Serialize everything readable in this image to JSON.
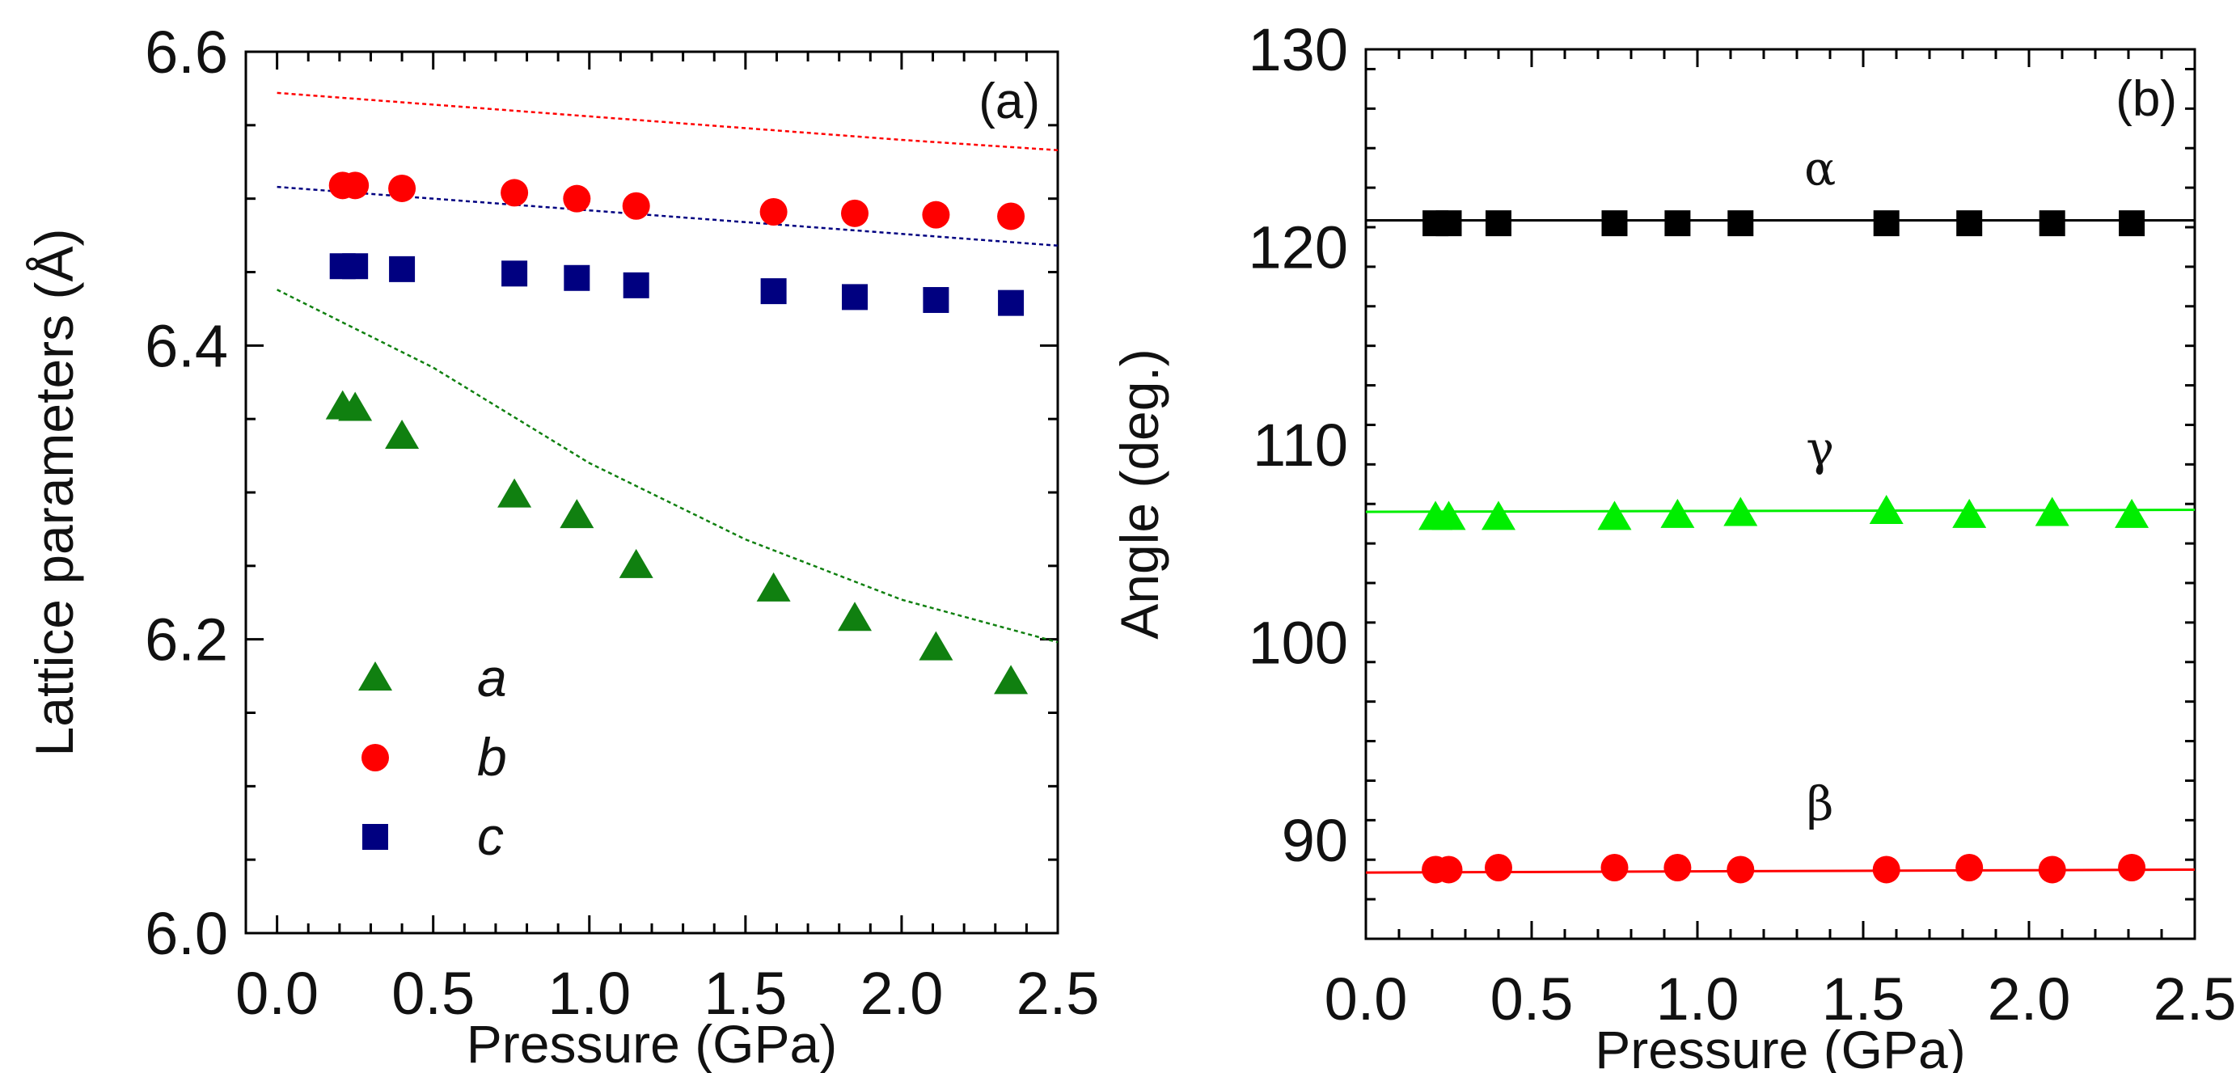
{
  "chart_data": [
    {
      "type": "scatter",
      "panel_label": "(a)",
      "xlabel": "Pressure (GPa)",
      "ylabel": "Lattice parameters (Å)",
      "xlim": [
        -0.1,
        2.5
      ],
      "ylim": [
        6.0,
        6.6
      ],
      "xticks": [
        "0.0",
        "0.5",
        "1.0",
        "1.5",
        "2.0",
        "2.5"
      ],
      "yticks": [
        "6.0",
        "6.2",
        "6.4",
        "6.6"
      ],
      "grid": false,
      "legend_position": "bottom-left",
      "series": [
        {
          "name": "a",
          "marker": "triangle",
          "color": "#108010",
          "x": [
            0.21,
            0.25,
            0.4,
            0.76,
            0.96,
            1.15,
            1.59,
            1.85,
            2.11,
            2.35
          ],
          "y": [
            6.358,
            6.357,
            6.338,
            6.298,
            6.284,
            6.25,
            6.234,
            6.214,
            6.194,
            6.171
          ]
        },
        {
          "name": "b",
          "marker": "circle",
          "color": "#ff0000",
          "x": [
            0.21,
            0.25,
            0.4,
            0.76,
            0.96,
            1.15,
            1.59,
            1.85,
            2.11,
            2.35
          ],
          "y": [
            6.509,
            6.509,
            6.507,
            6.504,
            6.5,
            6.495,
            6.491,
            6.49,
            6.489,
            6.488
          ]
        },
        {
          "name": "c",
          "marker": "square",
          "color": "#000080",
          "x": [
            0.21,
            0.25,
            0.4,
            0.76,
            0.96,
            1.15,
            1.59,
            1.85,
            2.11,
            2.35
          ],
          "y": [
            6.454,
            6.454,
            6.452,
            6.449,
            6.446,
            6.441,
            6.437,
            6.433,
            6.431,
            6.429
          ]
        }
      ],
      "fit_lines": [
        {
          "name": "b-fit",
          "color": "#ff0000",
          "style": "dotted",
          "x": [
            0,
            0.5,
            1.0,
            1.5,
            2.0,
            2.5
          ],
          "y": [
            6.572,
            6.564,
            6.556,
            6.548,
            6.54,
            6.533
          ]
        },
        {
          "name": "c-fit",
          "color": "#000080",
          "style": "dotted",
          "x": [
            0,
            0.5,
            1.0,
            1.5,
            2.0,
            2.5
          ],
          "y": [
            6.508,
            6.5,
            6.492,
            6.484,
            6.476,
            6.468
          ]
        },
        {
          "name": "a-fit",
          "color": "#108010",
          "style": "dotted",
          "x": [
            0,
            0.5,
            1.0,
            1.5,
            2.0,
            2.5
          ],
          "y": [
            6.438,
            6.385,
            6.32,
            6.268,
            6.227,
            6.198
          ]
        }
      ]
    },
    {
      "type": "scatter",
      "panel_label": "(b)",
      "xlabel": "Pressure (GPa)",
      "ylabel": "Angle (deg.)",
      "xlim": [
        0,
        2.5
      ],
      "ylim": [
        85,
        130
      ],
      "xticks": [
        "0.0",
        "0.5",
        "1.0",
        "1.5",
        "2.0",
        "2.5"
      ],
      "yticks": [
        "90",
        "100",
        "110",
        "120",
        "130"
      ],
      "grid": false,
      "series": [
        {
          "name": "α",
          "marker": "square",
          "color": "#000000",
          "x": [
            0.21,
            0.25,
            0.4,
            0.75,
            0.94,
            1.13,
            1.57,
            1.82,
            2.07,
            2.31
          ],
          "y": [
            121.2,
            121.2,
            121.2,
            121.2,
            121.2,
            121.2,
            121.2,
            121.2,
            121.2,
            121.2
          ]
        },
        {
          "name": "γ",
          "marker": "triangle",
          "color": "#00ee00",
          "x": [
            0.21,
            0.25,
            0.4,
            0.75,
            0.94,
            1.13,
            1.57,
            1.82,
            2.07,
            2.31
          ],
          "y": [
            106.3,
            106.3,
            106.3,
            106.3,
            106.4,
            106.5,
            106.6,
            106.4,
            106.5,
            106.4
          ]
        },
        {
          "name": "β",
          "marker": "circle",
          "color": "#ff0000",
          "x": [
            0.21,
            0.25,
            0.4,
            0.75,
            0.94,
            1.13,
            1.57,
            1.82,
            2.07,
            2.31
          ],
          "y": [
            88.5,
            88.5,
            88.6,
            88.6,
            88.6,
            88.5,
            88.5,
            88.6,
            88.5,
            88.6
          ]
        }
      ],
      "fit_lines": [
        {
          "name": "α-fit",
          "color": "#000000",
          "style": "solid",
          "x": [
            0,
            2.5
          ],
          "y": [
            121.35,
            121.35
          ]
        },
        {
          "name": "γ-fit",
          "color": "#00ee00",
          "style": "solid",
          "x": [
            0,
            2.5
          ],
          "y": [
            106.6,
            106.7
          ]
        },
        {
          "name": "β-fit",
          "color": "#ff0000",
          "style": "solid",
          "x": [
            0,
            2.5
          ],
          "y": [
            88.35,
            88.5
          ]
        }
      ]
    }
  ]
}
